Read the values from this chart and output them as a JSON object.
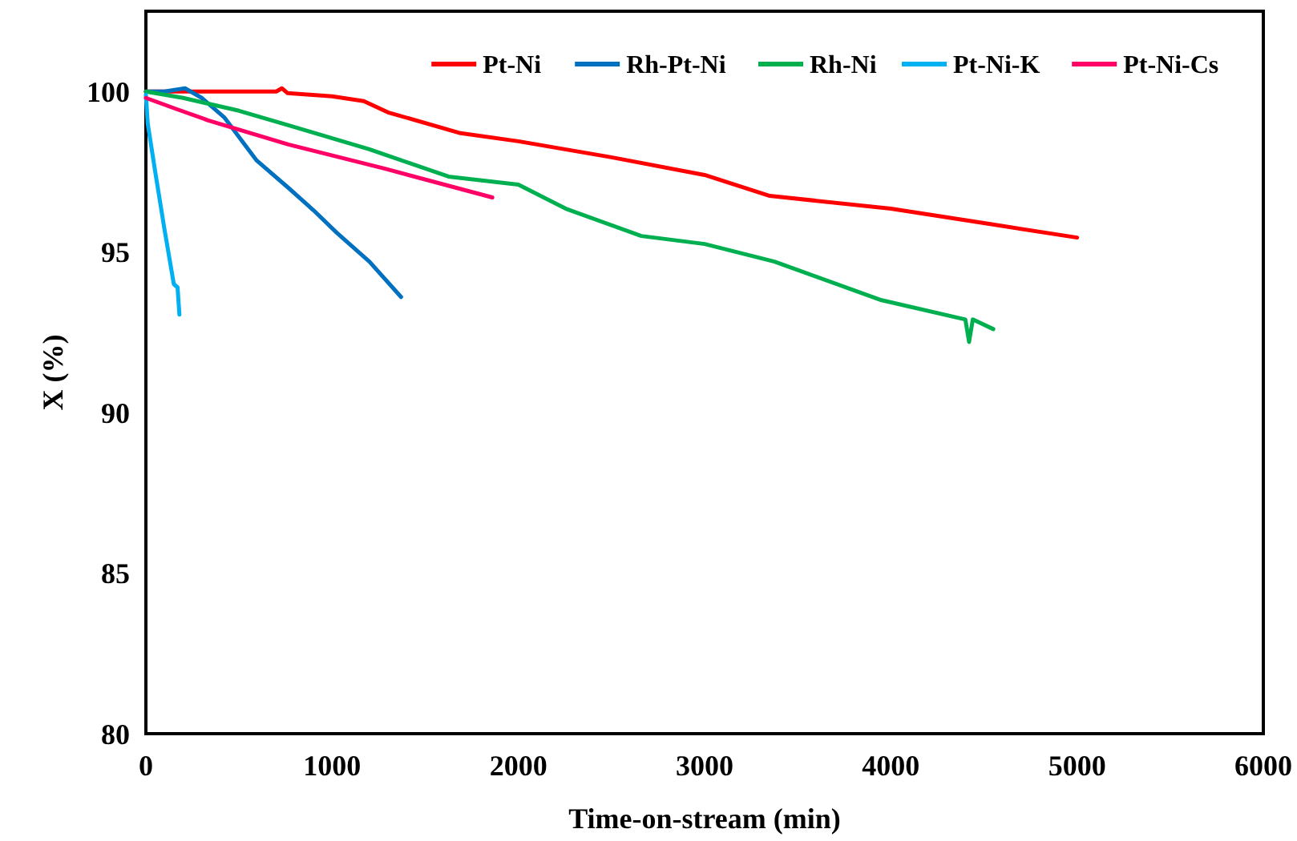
{
  "chart_data": {
    "type": "line",
    "xlabel": "Time-on-stream (min)",
    "ylabel": "X (%)",
    "xlim": [
      0,
      6000
    ],
    "xticks": [
      0,
      1000,
      2000,
      3000,
      4000,
      5000,
      6000
    ],
    "ylim": [
      80,
      102.5
    ],
    "yticks": [
      80,
      85,
      90,
      95,
      100
    ],
    "grid": false,
    "legend": "top right",
    "marker": "none",
    "line_style": "solid",
    "series": [
      {
        "name": "Pt-Ni",
        "color": "#ff0000",
        "x": [
          0,
          300,
          700,
          730,
          760,
          1000,
          1170,
          1300,
          1690,
          2000,
          2500,
          3000,
          3350,
          4000,
          4500,
          5000
        ],
        "values": [
          100,
          100,
          100,
          100.1,
          99.95,
          99.85,
          99.7,
          99.35,
          98.7,
          98.45,
          97.95,
          97.4,
          96.75,
          96.35,
          95.9,
          95.45
        ]
      },
      {
        "name": "Rh-Pt-Ni",
        "color": "#0070c0",
        "x": [
          0,
          100,
          210,
          300,
          420,
          595,
          765,
          900,
          1025,
          1200,
          1370
        ],
        "values": [
          100,
          100,
          100.1,
          99.8,
          99.2,
          97.85,
          97.0,
          96.3,
          95.6,
          94.7,
          93.6
        ]
      },
      {
        "name": "Rh-Ni",
        "color": "#00b050",
        "x": [
          0,
          200,
          500,
          765,
          1200,
          1625,
          2000,
          2255,
          2660,
          3000,
          3375,
          3950,
          4400,
          4420,
          4440,
          4550
        ],
        "values": [
          100,
          99.8,
          99.4,
          98.95,
          98.2,
          97.35,
          97.1,
          96.35,
          95.5,
          95.25,
          94.7,
          93.5,
          92.9,
          92.2,
          92.9,
          92.6
        ]
      },
      {
        "name": "Pt-Ni-K",
        "color": "#00b0f0",
        "x": [
          0,
          10,
          50,
          100,
          150,
          170,
          180
        ],
        "values": [
          99.9,
          99.0,
          97.5,
          95.7,
          94.0,
          93.9,
          93.05
        ]
      },
      {
        "name": "Pt-Ni-Cs",
        "color": "#ff0066",
        "x": [
          0,
          165,
          335,
          765,
          1280,
          1860
        ],
        "values": [
          99.8,
          99.45,
          99.1,
          98.35,
          97.6,
          96.7
        ]
      }
    ]
  }
}
